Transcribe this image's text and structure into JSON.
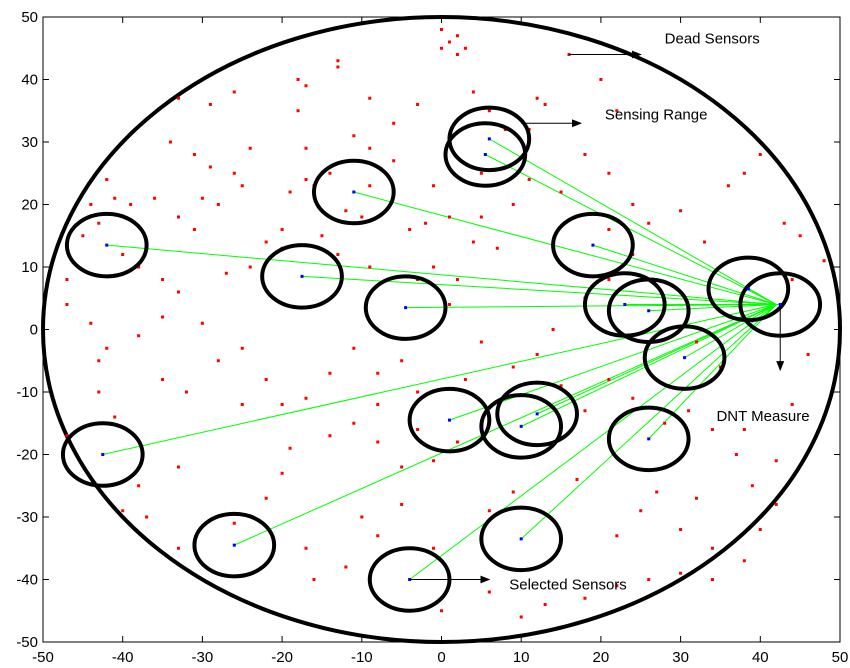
{
  "chart_data": {
    "type": "scatter",
    "xlim": [
      -50,
      50
    ],
    "ylim": [
      -50,
      50
    ],
    "x_ticks": [
      -50,
      -40,
      -30,
      -20,
      -10,
      0,
      10,
      20,
      30,
      40,
      50
    ],
    "y_ticks": [
      -50,
      -40,
      -30,
      -20,
      -10,
      0,
      10,
      20,
      30,
      40,
      50
    ],
    "grid": false,
    "field_circle": {
      "center": [
        0,
        0
      ],
      "radius": 50,
      "color": "#000000"
    },
    "sink": [
      42,
      4
    ],
    "dead_sensors": {
      "color": "#ff0000",
      "points": [
        [
          0,
          48
        ],
        [
          1,
          46
        ],
        [
          2,
          47
        ],
        [
          3,
          45
        ],
        [
          0,
          45
        ],
        [
          2,
          44
        ],
        [
          16,
          44
        ],
        [
          20,
          40
        ],
        [
          13,
          36
        ],
        [
          22,
          35
        ],
        [
          4,
          38
        ],
        [
          12,
          37
        ],
        [
          11,
          32
        ],
        [
          6,
          35
        ],
        [
          8,
          32
        ],
        [
          -13,
          43
        ],
        [
          -13,
          42
        ],
        [
          -18,
          40
        ],
        [
          -17,
          39
        ],
        [
          -26,
          38
        ],
        [
          -33,
          37
        ],
        [
          -29,
          36
        ],
        [
          -18,
          35
        ],
        [
          -9,
          37
        ],
        [
          -3,
          36
        ],
        [
          -11,
          31
        ],
        [
          -17,
          29
        ],
        [
          -24,
          29
        ],
        [
          -31,
          28
        ],
        [
          -34,
          30
        ],
        [
          -26,
          25
        ],
        [
          -29,
          26
        ],
        [
          -42,
          24
        ],
        [
          -36,
          21
        ],
        [
          -41,
          21
        ],
        [
          -39,
          20
        ],
        [
          -30,
          21
        ],
        [
          -25,
          23
        ],
        [
          -17,
          24
        ],
        [
          -16,
          23
        ],
        [
          -19,
          22
        ],
        [
          -14,
          25
        ],
        [
          -11,
          27
        ],
        [
          -9,
          29
        ],
        [
          -6,
          33
        ],
        [
          -1,
          23
        ],
        [
          -9,
          23
        ],
        [
          -31,
          16
        ],
        [
          -33,
          18
        ],
        [
          -28,
          20
        ],
        [
          -12,
          19
        ],
        [
          -10,
          18
        ],
        [
          -2,
          17
        ],
        [
          1,
          18
        ],
        [
          5,
          18
        ],
        [
          -44,
          20
        ],
        [
          -43,
          17
        ],
        [
          -45,
          15
        ],
        [
          -40,
          12
        ],
        [
          -38,
          10
        ],
        [
          -35,
          8
        ],
        [
          -33,
          6
        ],
        [
          -27,
          9
        ],
        [
          -24,
          10
        ],
        [
          -22,
          14
        ],
        [
          -20,
          16
        ],
        [
          -20,
          13
        ],
        [
          -15,
          15
        ],
        [
          -13,
          12
        ],
        [
          -9,
          10
        ],
        [
          -4,
          16
        ],
        [
          -1,
          10
        ],
        [
          2,
          8
        ],
        [
          4,
          14
        ],
        [
          7,
          13
        ],
        [
          -47,
          8
        ],
        [
          -47,
          4
        ],
        [
          -44,
          1
        ],
        [
          -42,
          -3
        ],
        [
          -43,
          -5
        ],
        [
          -38,
          -1
        ],
        [
          -35,
          2
        ],
        [
          -30,
          1
        ],
        [
          -28,
          -5
        ],
        [
          -25,
          -3
        ],
        [
          -22,
          -8
        ],
        [
          -17,
          -11
        ],
        [
          -14,
          -7
        ],
        [
          -11,
          -3
        ],
        [
          -8,
          -7
        ],
        [
          -8,
          -12
        ],
        [
          -5,
          -5
        ],
        [
          -3,
          -10
        ],
        [
          3,
          -8
        ],
        [
          5,
          -2
        ],
        [
          9,
          -6
        ],
        [
          -47,
          -17
        ],
        [
          -43,
          -10
        ],
        [
          -41,
          -14
        ],
        [
          -35,
          -8
        ],
        [
          -32,
          -10
        ],
        [
          -25,
          -12
        ],
        [
          -20,
          -12
        ],
        [
          -19,
          -19
        ],
        [
          -14,
          -17
        ],
        [
          -11,
          -15
        ],
        [
          -8,
          -18
        ],
        [
          -5,
          -22
        ],
        [
          -3,
          -16
        ],
        [
          -1,
          -21
        ],
        [
          2,
          -18
        ],
        [
          -33,
          -22
        ],
        [
          -38,
          -25
        ],
        [
          -40,
          -29
        ],
        [
          -37,
          -30
        ],
        [
          -33,
          -35
        ],
        [
          -26,
          -31
        ],
        [
          -22,
          -27
        ],
        [
          -20,
          -23
        ],
        [
          -17,
          -35
        ],
        [
          -16,
          -40
        ],
        [
          -12,
          -38
        ],
        [
          -10,
          -30
        ],
        [
          -8,
          -33
        ],
        [
          -5,
          -28
        ],
        [
          -1,
          -35
        ],
        [
          0,
          -45
        ],
        [
          6,
          -42
        ],
        [
          10,
          -46
        ],
        [
          13,
          -44
        ],
        [
          18,
          -43
        ],
        [
          22,
          -41
        ],
        [
          26,
          -40
        ],
        [
          30,
          -39
        ],
        [
          34,
          -40
        ],
        [
          38,
          -37
        ],
        [
          40,
          -32
        ],
        [
          42,
          -28
        ],
        [
          39,
          -25
        ],
        [
          37,
          -20
        ],
        [
          34,
          -16
        ],
        [
          31,
          -13
        ],
        [
          28,
          -15
        ],
        [
          24,
          -11
        ],
        [
          21,
          -8
        ],
        [
          18,
          -13
        ],
        [
          15,
          -9
        ],
        [
          12,
          -4
        ],
        [
          14,
          0
        ],
        [
          18,
          5
        ],
        [
          21,
          8
        ],
        [
          24,
          12
        ],
        [
          21,
          16
        ],
        [
          26,
          17
        ],
        [
          30,
          19
        ],
        [
          33,
          14
        ],
        [
          36,
          23
        ],
        [
          38,
          25
        ],
        [
          40,
          28
        ],
        [
          43,
          17
        ],
        [
          45,
          15
        ],
        [
          48,
          11
        ],
        [
          44,
          8
        ],
        [
          47,
          2
        ],
        [
          46,
          -4
        ],
        [
          44,
          -12
        ],
        [
          42,
          -21
        ],
        [
          38,
          -16
        ],
        [
          35,
          -6
        ],
        [
          32,
          -2
        ],
        [
          24,
          20
        ],
        [
          21,
          25
        ],
        [
          18,
          28
        ],
        [
          15,
          22
        ],
        [
          11,
          24
        ],
        [
          9,
          20
        ],
        [
          5,
          25
        ],
        [
          -6,
          27
        ],
        [
          -3,
          8
        ],
        [
          1,
          4
        ],
        [
          25,
          -29
        ],
        [
          30,
          -32
        ],
        [
          34,
          -35
        ],
        [
          27,
          -26
        ],
        [
          22,
          -33
        ],
        [
          32,
          -27
        ],
        [
          6,
          -29
        ],
        [
          9,
          -26
        ],
        [
          17,
          -24
        ],
        [
          28,
          -22
        ]
      ]
    },
    "selected_sensors": {
      "color": "#0000ff",
      "sensing_radius": 5,
      "range_color": "#000000",
      "link_color": "#00ff00",
      "points": [
        [
          6,
          30.5
        ],
        [
          5.5,
          28
        ],
        [
          -11,
          22
        ],
        [
          -42,
          13.5
        ],
        [
          -17.5,
          8.5
        ],
        [
          -4.5,
          3.5
        ],
        [
          19,
          13.5
        ],
        [
          23,
          4
        ],
        [
          26,
          3
        ],
        [
          38.5,
          6.5
        ],
        [
          42.5,
          4
        ],
        [
          30.5,
          -4.5
        ],
        [
          1,
          -14.5
        ],
        [
          10,
          -15.5
        ],
        [
          12,
          -13.5
        ],
        [
          26,
          -17.5
        ],
        [
          -42.5,
          -20
        ],
        [
          -26,
          -34.5
        ],
        [
          10,
          -33.5
        ],
        [
          -4,
          -40
        ]
      ]
    },
    "annotations": [
      {
        "label": "Dead Sensors",
        "text_pos": [
          28,
          45.8
        ],
        "arrow_from": [
          16,
          44
        ],
        "arrow_to": [
          25,
          44
        ]
      },
      {
        "label": "Sensing Range",
        "text_pos": [
          20.5,
          33.6
        ],
        "arrow_from": [
          10,
          33
        ],
        "arrow_to": [
          17.5,
          33
        ]
      },
      {
        "label": "DNT Measure",
        "text_pos": [
          34.5,
          -14.6
        ],
        "arrow_from": [
          42.5,
          3.5
        ],
        "arrow_to": [
          42.5,
          -6.5
        ]
      },
      {
        "label": "Selected Sensors",
        "text_pos": [
          8.5,
          -41.6
        ],
        "arrow_from": [
          -4,
          -40
        ],
        "arrow_to": [
          6,
          -40
        ]
      }
    ]
  }
}
